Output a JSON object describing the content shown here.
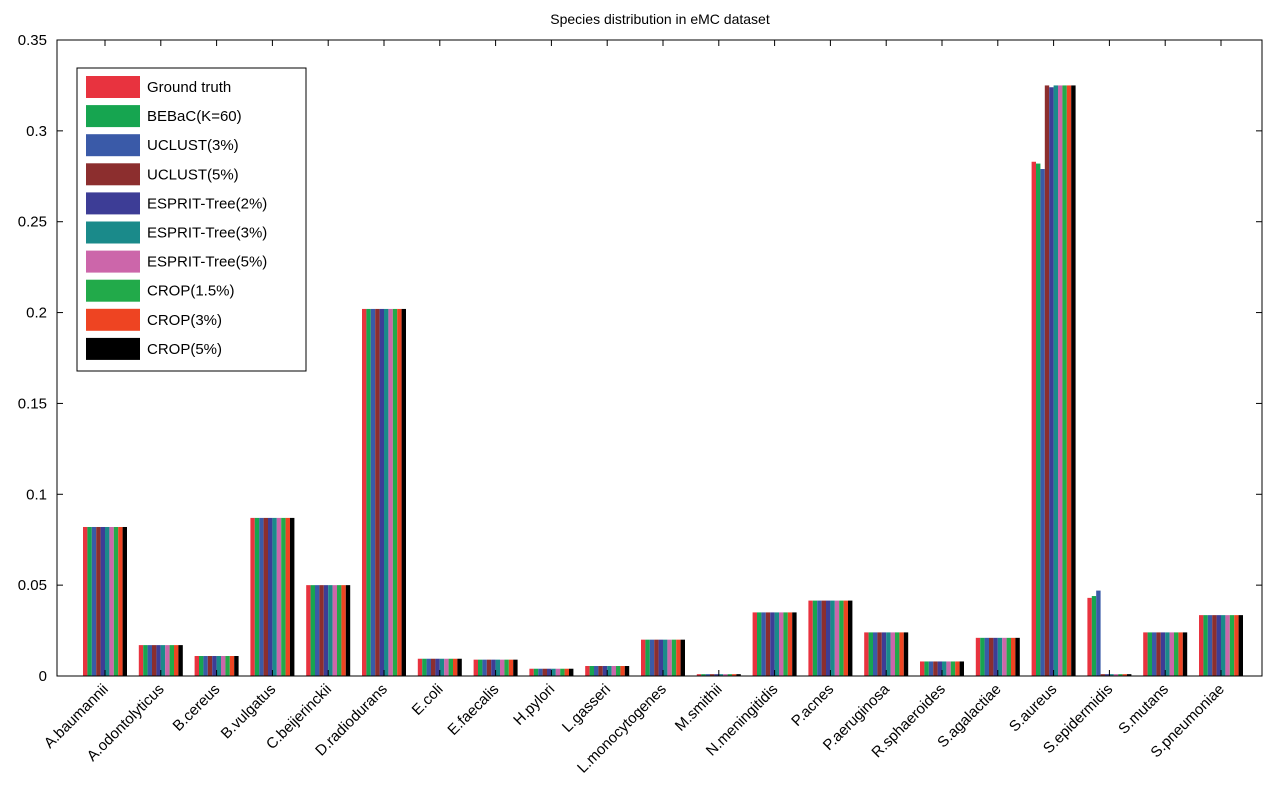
{
  "chart_data": {
    "type": "bar",
    "title": "Species distribution in eMC dataset",
    "xlabel": "",
    "ylabel": "",
    "ylim": [
      0,
      0.35
    ],
    "yticks": [
      0,
      0.05,
      0.1,
      0.15,
      0.2,
      0.25,
      0.3,
      0.35
    ],
    "ytick_labels": [
      "0",
      "0.05",
      "0.1",
      "0.15",
      "0.2",
      "0.25",
      "0.3",
      "0.35"
    ],
    "grid": false,
    "legend_position": "top-left",
    "categories": [
      "A.baumannii",
      "A.odontolyticus",
      "B.cereus",
      "B.vulgatus",
      "C.beijerinckii",
      "D.radiodurans",
      "E.coli",
      "E.faecalis",
      "H.pylori",
      "L.gasseri",
      "L.monocytogenes",
      "M.smithii",
      "N.meningitidis",
      "P.acnes",
      "P.aeruginosa",
      "R.sphaeroides",
      "S.agalactiae",
      "S.aureus",
      "S.epidermidis",
      "S.mutans",
      "S.pneumoniae"
    ],
    "series": [
      {
        "name": "Ground truth",
        "color": "#e8333f",
        "values": [
          0.082,
          0.017,
          0.011,
          0.087,
          0.05,
          0.202,
          0.0095,
          0.009,
          0.004,
          0.0055,
          0.02,
          0.001,
          0.035,
          0.0415,
          0.024,
          0.008,
          0.021,
          0.283,
          0.043,
          0.024,
          0.0335
        ]
      },
      {
        "name": "BEBaC(K=60)",
        "color": "#16a550",
        "values": [
          0.082,
          0.017,
          0.011,
          0.087,
          0.05,
          0.202,
          0.0095,
          0.009,
          0.004,
          0.0055,
          0.02,
          0.001,
          0.035,
          0.0415,
          0.024,
          0.008,
          0.021,
          0.282,
          0.044,
          0.024,
          0.0335
        ]
      },
      {
        "name": "UCLUST(3%)",
        "color": "#3a5aa8",
        "values": [
          0.082,
          0.017,
          0.011,
          0.087,
          0.05,
          0.202,
          0.0095,
          0.009,
          0.004,
          0.0055,
          0.02,
          0.001,
          0.035,
          0.0415,
          0.024,
          0.008,
          0.021,
          0.279,
          0.047,
          0.024,
          0.0335
        ]
      },
      {
        "name": "UCLUST(5%)",
        "color": "#8c2e2e",
        "values": [
          0.082,
          0.017,
          0.011,
          0.087,
          0.05,
          0.202,
          0.0095,
          0.009,
          0.004,
          0.0055,
          0.02,
          0.001,
          0.035,
          0.0415,
          0.024,
          0.008,
          0.021,
          0.325,
          0.001,
          0.024,
          0.0335
        ]
      },
      {
        "name": "ESPRIT-Tree(2%)",
        "color": "#3d3d96",
        "values": [
          0.082,
          0.017,
          0.011,
          0.087,
          0.05,
          0.202,
          0.0095,
          0.009,
          0.004,
          0.0055,
          0.02,
          0.001,
          0.035,
          0.0415,
          0.024,
          0.008,
          0.021,
          0.324,
          0.001,
          0.024,
          0.0335
        ]
      },
      {
        "name": "ESPRIT-Tree(3%)",
        "color": "#1a8a8a",
        "values": [
          0.082,
          0.017,
          0.011,
          0.087,
          0.05,
          0.202,
          0.0095,
          0.009,
          0.004,
          0.0055,
          0.02,
          0.001,
          0.035,
          0.0415,
          0.024,
          0.008,
          0.021,
          0.325,
          0.001,
          0.024,
          0.0335
        ]
      },
      {
        "name": "ESPRIT-Tree(5%)",
        "color": "#cc66aa",
        "values": [
          0.082,
          0.017,
          0.011,
          0.087,
          0.05,
          0.202,
          0.0095,
          0.009,
          0.004,
          0.0055,
          0.02,
          0.001,
          0.035,
          0.0415,
          0.024,
          0.008,
          0.021,
          0.325,
          0.001,
          0.024,
          0.0335
        ]
      },
      {
        "name": "CROP(1.5%)",
        "color": "#22aa4a",
        "values": [
          0.082,
          0.017,
          0.011,
          0.087,
          0.05,
          0.202,
          0.0095,
          0.009,
          0.004,
          0.0055,
          0.02,
          0.001,
          0.035,
          0.0415,
          0.024,
          0.008,
          0.021,
          0.325,
          0.001,
          0.024,
          0.0335
        ]
      },
      {
        "name": "CROP(3%)",
        "color": "#ee4422",
        "values": [
          0.082,
          0.017,
          0.011,
          0.087,
          0.05,
          0.202,
          0.0095,
          0.009,
          0.004,
          0.0055,
          0.02,
          0.001,
          0.035,
          0.0415,
          0.024,
          0.008,
          0.021,
          0.325,
          0.001,
          0.024,
          0.0335
        ]
      },
      {
        "name": "CROP(5%)",
        "color": "#000000",
        "values": [
          0.082,
          0.017,
          0.011,
          0.087,
          0.05,
          0.202,
          0.0095,
          0.009,
          0.004,
          0.0055,
          0.02,
          0.001,
          0.035,
          0.0415,
          0.024,
          0.008,
          0.021,
          0.325,
          0.001,
          0.024,
          0.0335
        ]
      }
    ]
  }
}
